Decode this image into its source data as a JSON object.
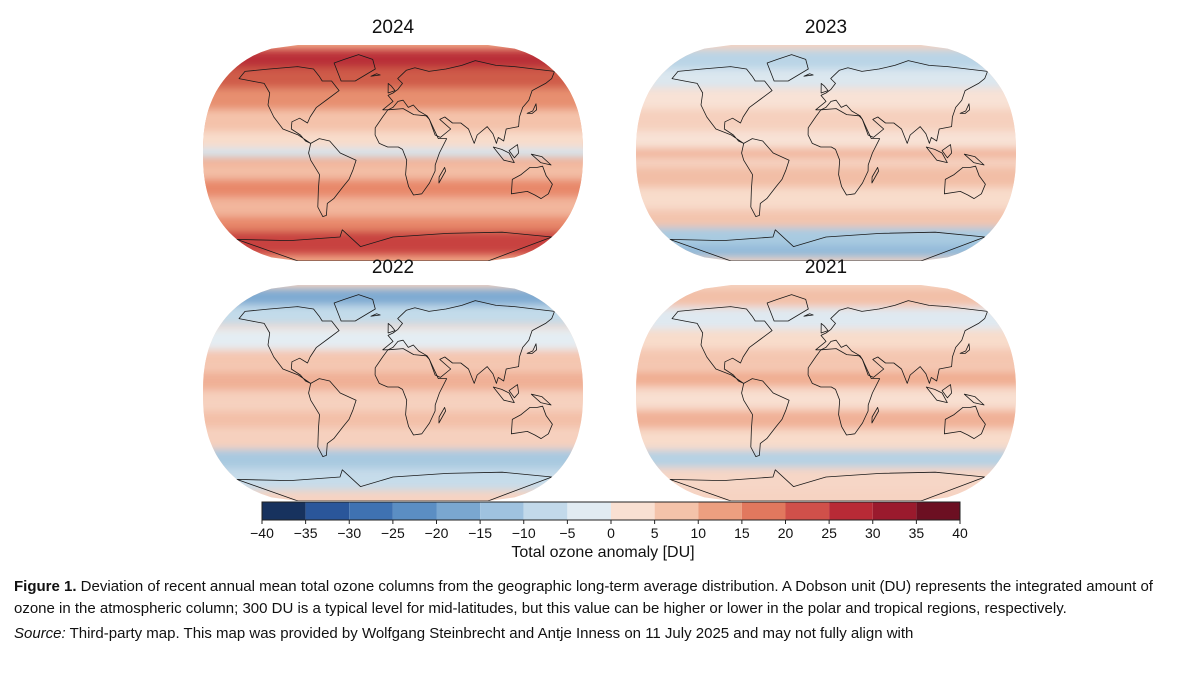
{
  "maps": [
    {
      "year": "2024",
      "base": "#f0a585",
      "bands": [
        {
          "lat": 78,
          "w": 16,
          "color": "#b92f37"
        },
        {
          "lat": 62,
          "w": 18,
          "color": "#cf5b4a"
        },
        {
          "lat": 45,
          "w": 18,
          "color": "#e78f70"
        },
        {
          "lat": 28,
          "w": 16,
          "color": "#f4c2aa"
        },
        {
          "lat": 10,
          "w": 18,
          "color": "#f8dccb"
        },
        {
          "lat": 0,
          "w": 8,
          "color": "#d4e4ef"
        },
        {
          "lat": -15,
          "w": 14,
          "color": "#f3bea5"
        },
        {
          "lat": -30,
          "w": 16,
          "color": "#e8886b"
        },
        {
          "lat": -45,
          "w": 16,
          "color": "#f2b69c"
        },
        {
          "lat": -60,
          "w": 14,
          "color": "#e8886b"
        },
        {
          "lat": -75,
          "w": 20,
          "color": "#c8423f"
        }
      ]
    },
    {
      "year": "2023",
      "base": "#f6d3c2",
      "bands": [
        {
          "lat": 78,
          "w": 16,
          "color": "#b9d4e6"
        },
        {
          "lat": 62,
          "w": 16,
          "color": "#dbe7ef"
        },
        {
          "lat": 45,
          "w": 16,
          "color": "#f8e2d6"
        },
        {
          "lat": 28,
          "w": 16,
          "color": "#f6d0bd"
        },
        {
          "lat": 10,
          "w": 16,
          "color": "#f8e2d6"
        },
        {
          "lat": 0,
          "w": 8,
          "color": "#f0b59c"
        },
        {
          "lat": -20,
          "w": 16,
          "color": "#f2bea6"
        },
        {
          "lat": -38,
          "w": 16,
          "color": "#f8dccb"
        },
        {
          "lat": -55,
          "w": 14,
          "color": "#f3c4ad"
        },
        {
          "lat": -70,
          "w": 16,
          "color": "#a9cbe1"
        },
        {
          "lat": -82,
          "w": 10,
          "color": "#92b9d9"
        }
      ]
    },
    {
      "year": "2022",
      "base": "#f6d3c2",
      "bands": [
        {
          "lat": 80,
          "w": 14,
          "color": "#7eaad2"
        },
        {
          "lat": 65,
          "w": 16,
          "color": "#c3dbea"
        },
        {
          "lat": 45,
          "w": 18,
          "color": "#e4edf3"
        },
        {
          "lat": 28,
          "w": 16,
          "color": "#f4c6b0"
        },
        {
          "lat": 10,
          "w": 16,
          "color": "#f0b096"
        },
        {
          "lat": -5,
          "w": 10,
          "color": "#f6d0bd"
        },
        {
          "lat": -22,
          "w": 14,
          "color": "#f3c0a8"
        },
        {
          "lat": -40,
          "w": 14,
          "color": "#f6d0bd"
        },
        {
          "lat": -55,
          "w": 16,
          "color": "#a8c9e0"
        },
        {
          "lat": -72,
          "w": 18,
          "color": "#c6dcea"
        }
      ]
    },
    {
      "year": "2021",
      "base": "#f6d3c2",
      "bands": [
        {
          "lat": 80,
          "w": 14,
          "color": "#f2bfa7"
        },
        {
          "lat": 62,
          "w": 18,
          "color": "#dfe9f1"
        },
        {
          "lat": 45,
          "w": 16,
          "color": "#f8dccb"
        },
        {
          "lat": 28,
          "w": 16,
          "color": "#f4c6b0"
        },
        {
          "lat": 12,
          "w": 12,
          "color": "#f0ad92"
        },
        {
          "lat": -5,
          "w": 12,
          "color": "#f8e0d2"
        },
        {
          "lat": -22,
          "w": 14,
          "color": "#f0b096"
        },
        {
          "lat": -40,
          "w": 14,
          "color": "#f8dccb"
        },
        {
          "lat": -55,
          "w": 14,
          "color": "#b5d1e4"
        },
        {
          "lat": -72,
          "w": 18,
          "color": "#f6d6c6"
        }
      ]
    }
  ],
  "colorbar": {
    "ticks": [
      "−40",
      "−35",
      "−30",
      "−25",
      "−20",
      "−15",
      "−10",
      "−5",
      "0",
      "5",
      "10",
      "15",
      "20",
      "25",
      "30",
      "35",
      "40"
    ],
    "colors": [
      "#17325e",
      "#2a569a",
      "#3f72b2",
      "#5b8ec3",
      "#7aa7d0",
      "#9fc2df",
      "#c2d9ea",
      "#e1ebf2",
      "#f9e0d2",
      "#f4c3aa",
      "#ec9f80",
      "#e1785e",
      "#d0504a",
      "#b82a36",
      "#9a1a2d",
      "#6c0f22"
    ],
    "title": "Total ozone anomaly [DU]"
  },
  "caption": {
    "label": "Figure 1.",
    "text": " Deviation of recent annual mean total ozone columns from the geographic long-term average distribution. A Dobson unit (DU) represents the integrated amount of ozone in the atmospheric column; 300 DU is a typical level for mid-latitudes, but this value can be higher or lower in the polar and tropical regions, respectively.",
    "source_label": "Source:",
    "source_text": " Third-party map. This map was provided by Wolfgang Steinbrecht and Antje Inness on 11 July 2025 and may not fully align with"
  },
  "continents": [
    [
      [
        -165,
        68
      ],
      [
        -140,
        70
      ],
      [
        -110,
        72
      ],
      [
        -90,
        70
      ],
      [
        -80,
        64
      ],
      [
        -75,
        60
      ],
      [
        -65,
        60
      ],
      [
        -55,
        52
      ],
      [
        -65,
        45
      ],
      [
        -75,
        38
      ],
      [
        -80,
        30
      ],
      [
        -82,
        25
      ],
      [
        -90,
        29
      ],
      [
        -97,
        26
      ],
      [
        -97,
        20
      ],
      [
        -88,
        15
      ],
      [
        -83,
        10
      ],
      [
        -78,
        8
      ],
      [
        -90,
        15
      ],
      [
        -105,
        20
      ],
      [
        -115,
        30
      ],
      [
        -123,
        40
      ],
      [
        -125,
        50
      ],
      [
        -135,
        58
      ],
      [
        -150,
        60
      ],
      [
        -165,
        62
      ],
      [
        -165,
        68
      ]
    ],
    [
      [
        -78,
        8
      ],
      [
        -70,
        12
      ],
      [
        -60,
        10
      ],
      [
        -50,
        0
      ],
      [
        -35,
        -6
      ],
      [
        -38,
        -14
      ],
      [
        -42,
        -22
      ],
      [
        -48,
        -28
      ],
      [
        -58,
        -38
      ],
      [
        -65,
        -42
      ],
      [
        -68,
        -52
      ],
      [
        -72,
        -53
      ],
      [
        -75,
        -45
      ],
      [
        -72,
        -30
      ],
      [
        -70,
        -18
      ],
      [
        -78,
        -6
      ],
      [
        -80,
        0
      ],
      [
        -78,
        8
      ]
    ],
    [
      [
        -55,
        60
      ],
      [
        -40,
        60
      ],
      [
        -20,
        70
      ],
      [
        -25,
        78
      ],
      [
        -45,
        82
      ],
      [
        -60,
        78
      ],
      [
        -70,
        75
      ],
      [
        -55,
        60
      ]
    ],
    [
      [
        -10,
        36
      ],
      [
        0,
        43
      ],
      [
        -5,
        48
      ],
      [
        0,
        50
      ],
      [
        5,
        53
      ],
      [
        10,
        58
      ],
      [
        5,
        62
      ],
      [
        15,
        69
      ],
      [
        25,
        71
      ],
      [
        40,
        68
      ],
      [
        60,
        70
      ],
      [
        80,
        73
      ],
      [
        100,
        77
      ],
      [
        120,
        73
      ],
      [
        140,
        72
      ],
      [
        160,
        70
      ],
      [
        180,
        68
      ],
      [
        170,
        62
      ],
      [
        160,
        58
      ],
      [
        142,
        52
      ],
      [
        135,
        44
      ],
      [
        127,
        38
      ],
      [
        122,
        30
      ],
      [
        120,
        22
      ],
      [
        108,
        20
      ],
      [
        105,
        10
      ],
      [
        100,
        13
      ],
      [
        98,
        8
      ],
      [
        95,
        16
      ],
      [
        90,
        22
      ],
      [
        80,
        15
      ],
      [
        77,
        8
      ],
      [
        72,
        20
      ],
      [
        65,
        25
      ],
      [
        57,
        25
      ],
      [
        50,
        30
      ],
      [
        45,
        28
      ],
      [
        55,
        20
      ],
      [
        45,
        13
      ],
      [
        40,
        15
      ],
      [
        35,
        28
      ],
      [
        33,
        31
      ],
      [
        25,
        35
      ],
      [
        20,
        40
      ],
      [
        15,
        38
      ],
      [
        10,
        44
      ],
      [
        5,
        43
      ],
      [
        0,
        38
      ],
      [
        -5,
        36
      ],
      [
        -10,
        36
      ]
    ],
    [
      [
        -17,
        15
      ],
      [
        -17,
        21
      ],
      [
        -10,
        30
      ],
      [
        -5,
        36
      ],
      [
        10,
        37
      ],
      [
        20,
        32
      ],
      [
        32,
        31
      ],
      [
        35,
        28
      ],
      [
        43,
        12
      ],
      [
        51,
        12
      ],
      [
        44,
        0
      ],
      [
        40,
        -10
      ],
      [
        40,
        -15
      ],
      [
        35,
        -25
      ],
      [
        28,
        -34
      ],
      [
        20,
        -35
      ],
      [
        15,
        -28
      ],
      [
        12,
        -18
      ],
      [
        13,
        -6
      ],
      [
        9,
        3
      ],
      [
        5,
        5
      ],
      [
        -5,
        5
      ],
      [
        -13,
        8
      ],
      [
        -17,
        15
      ]
    ],
    [
      [
        114,
        -22
      ],
      [
        122,
        -18
      ],
      [
        130,
        -12
      ],
      [
        137,
        -12
      ],
      [
        142,
        -11
      ],
      [
        146,
        -19
      ],
      [
        153,
        -26
      ],
      [
        151,
        -34
      ],
      [
        145,
        -38
      ],
      [
        138,
        -35
      ],
      [
        130,
        -32
      ],
      [
        115,
        -34
      ],
      [
        114,
        -22
      ]
    ],
    [
      [
        -180,
        -72
      ],
      [
        -120,
        -73
      ],
      [
        -60,
        -70
      ],
      [
        -55,
        -64
      ],
      [
        -40,
        -78
      ],
      [
        0,
        -70
      ],
      [
        60,
        -67
      ],
      [
        120,
        -66
      ],
      [
        180,
        -70
      ],
      [
        180,
        -90
      ],
      [
        -180,
        -90
      ],
      [
        -180,
        -72
      ]
    ],
    [
      [
        95,
        5
      ],
      [
        105,
        -6
      ],
      [
        115,
        -8
      ],
      [
        110,
        0
      ],
      [
        103,
        3
      ],
      [
        95,
        5
      ]
    ],
    [
      [
        110,
        2
      ],
      [
        118,
        7
      ],
      [
        119,
        0
      ],
      [
        115,
        -4
      ],
      [
        110,
        2
      ]
    ],
    [
      [
        131,
        -1
      ],
      [
        141,
        -3
      ],
      [
        150,
        -10
      ],
      [
        140,
        -8
      ],
      [
        131,
        -1
      ]
    ],
    [
      [
        130,
        33
      ],
      [
        136,
        35
      ],
      [
        141,
        41
      ],
      [
        140,
        36
      ],
      [
        135,
        33
      ],
      [
        130,
        33
      ]
    ],
    [
      [
        44,
        -25
      ],
      [
        50,
        -15
      ],
      [
        49,
        -12
      ],
      [
        44,
        -20
      ],
      [
        44,
        -25
      ]
    ],
    [
      [
        -5,
        50
      ],
      [
        2,
        52
      ],
      [
        -2,
        56
      ],
      [
        -5,
        58
      ],
      [
        -5,
        50
      ]
    ],
    [
      [
        -24,
        64
      ],
      [
        -14,
        65
      ],
      [
        -18,
        66
      ],
      [
        -24,
        64
      ]
    ]
  ]
}
